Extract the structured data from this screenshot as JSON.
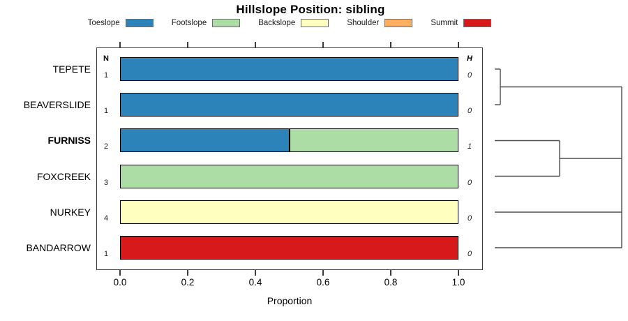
{
  "title": "Hillslope Position: sibling",
  "legend": {
    "items": [
      {
        "label": "Toeslope",
        "color": "#2B83BA"
      },
      {
        "label": "Footslope",
        "color": "#ABDDA4"
      },
      {
        "label": "Backslope",
        "color": "#FFFFBF"
      },
      {
        "label": "Shoulder",
        "color": "#FDAE61"
      },
      {
        "label": "Summit",
        "color": "#D7191C"
      }
    ]
  },
  "columns": {
    "n_header": "N",
    "h_header": "H"
  },
  "axis": {
    "label": "Proportion",
    "tick_labels": [
      "0.0",
      "0.2",
      "0.4",
      "0.6",
      "0.8",
      "1.0"
    ],
    "tick_values": [
      0,
      0.2,
      0.4,
      0.6,
      0.8,
      1.0
    ]
  },
  "chart_data": {
    "type": "bar",
    "orientation": "horizontal-stacked",
    "title": "Hillslope Position: sibling",
    "xlabel": "Proportion",
    "xlim": [
      0,
      1
    ],
    "grid": false,
    "legend_position": "top",
    "categories": [
      "TEPETE",
      "BEAVERSLIDE",
      "FURNISS",
      "FOXCREEK",
      "NURKEY",
      "BANDARROW"
    ],
    "emphasized_category": "FURNISS",
    "series": [
      {
        "name": "Toeslope",
        "color": "#2B83BA",
        "values": [
          1,
          1,
          0.5,
          0,
          0,
          0
        ]
      },
      {
        "name": "Footslope",
        "color": "#ABDDA4",
        "values": [
          0,
          0,
          0.5,
          1,
          0,
          0
        ]
      },
      {
        "name": "Backslope",
        "color": "#FFFFBF",
        "values": [
          0,
          0,
          0,
          0,
          1,
          0
        ]
      },
      {
        "name": "Shoulder",
        "color": "#FDAE61",
        "values": [
          0,
          0,
          0,
          0,
          0,
          0
        ]
      },
      {
        "name": "Summit",
        "color": "#D7191C",
        "values": [
          0,
          0,
          0,
          0,
          0,
          1
        ]
      }
    ],
    "n_values": [
      "1",
      "1",
      "2",
      "3",
      "4",
      "1"
    ],
    "h_values": [
      "0",
      "0",
      "1",
      "0",
      "0",
      "0"
    ]
  },
  "dendrogram": {
    "leaf_order": [
      "TEPETE",
      "BEAVERSLIDE",
      "FURNISS",
      "FOXCREEK",
      "NURKEY",
      "BANDARROW"
    ],
    "clusters": [
      {
        "members": [
          "TEPETE",
          "BEAVERSLIDE"
        ],
        "relative_merge_height": 0.05
      },
      {
        "members": [
          "FURNISS",
          "FOXCREEK"
        ],
        "relative_merge_height": 0.51
      },
      {
        "members": [
          "ALL"
        ],
        "relative_merge_height": 1.0
      }
    ],
    "segments": [
      [
        709,
        99,
        717,
        99
      ],
      [
        717,
        99,
        717,
        150
      ],
      [
        709,
        150,
        717,
        150
      ],
      [
        717,
        124.5,
        891,
        124.5
      ],
      [
        709,
        201.5,
        802,
        201.5
      ],
      [
        802,
        201.5,
        802,
        252.5
      ],
      [
        709,
        252.5,
        802,
        252.5
      ],
      [
        802,
        227,
        891,
        227
      ],
      [
        709,
        304,
        891,
        304
      ],
      [
        709,
        355,
        891,
        355
      ],
      [
        891,
        124.5,
        891,
        355
      ]
    ],
    "line_color": "#4d4d4d"
  }
}
